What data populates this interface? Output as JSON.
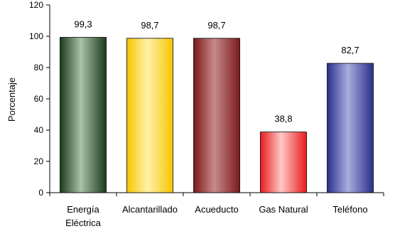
{
  "chart_data": {
    "type": "bar",
    "title": "",
    "xlabel": "",
    "ylabel": "Porcentaje",
    "ylim": [
      0,
      120
    ],
    "yticks": [
      0,
      20,
      40,
      60,
      80,
      100,
      120
    ],
    "grid": false,
    "categories": [
      [
        "Energía",
        "Eléctrica"
      ],
      [
        "Alcantarillado"
      ],
      [
        "Acueducto"
      ],
      [
        "Gas Natural"
      ],
      [
        "Teléfono"
      ]
    ],
    "values": [
      99.3,
      98.7,
      98.7,
      38.8,
      82.7
    ],
    "data_labels": [
      "99,3",
      "98,7",
      "98,7",
      "38,8",
      "82,7"
    ],
    "colors": [
      {
        "dark": "#1b3a1b",
        "light": "#a9c2a9"
      },
      {
        "dark": "#f7c400",
        "light": "#fff2a8"
      },
      {
        "dark": "#7a1a1a",
        "light": "#c88a8a"
      },
      {
        "dark": "#e81a1a",
        "light": "#ffc8c8"
      },
      {
        "dark": "#2b2f8a",
        "light": "#a9addf"
      }
    ]
  }
}
